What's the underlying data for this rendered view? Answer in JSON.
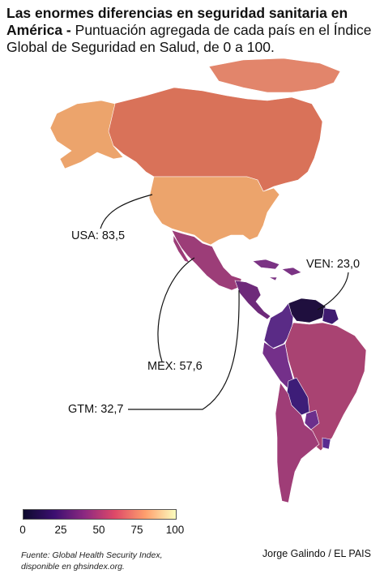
{
  "title": {
    "bold": "Las enormes diferencias en seguridad sanitaria en América -",
    "subtitle": "Puntuación agregada de cada país en el Índice Global de Seguridad en Salud, de 0 a 100."
  },
  "callouts": {
    "usa": "USA: 83,5",
    "mex": "MEX: 57,6",
    "gtm": "GTM: 32,7",
    "ven": "VEN: 23,0"
  },
  "legend": {
    "ticks": [
      "0",
      "25",
      "50",
      "75",
      "100"
    ],
    "range": [
      0,
      100
    ],
    "gradient_colors": [
      "#0e0a2e",
      "#3b0f70",
      "#8c2981",
      "#de4968",
      "#fe9f6d",
      "#fcfdbf"
    ]
  },
  "credit": "Jorge Galindo / EL PAIS",
  "source": {
    "line1": "Fuente: Global Health Security Index,",
    "line2": "disponible en ghsindex.org."
  },
  "colors": {
    "canada": "#d97259",
    "usa": "#eca46c",
    "mexico": "#9c3d78",
    "central_america": "#6e2a7a",
    "caribbean": "#7b3384",
    "venezuela": "#1f0f3e",
    "colombia": "#5a2b86",
    "guianas": "#3f1b70",
    "brazil": "#a94372",
    "peru": "#74308a",
    "bolivia": "#3d1d78",
    "paraguay": "#6c2f8c",
    "uruguay": "#5a2c90",
    "chile_argentina": "#9f3d77",
    "greenland": "#e2856b"
  }
}
